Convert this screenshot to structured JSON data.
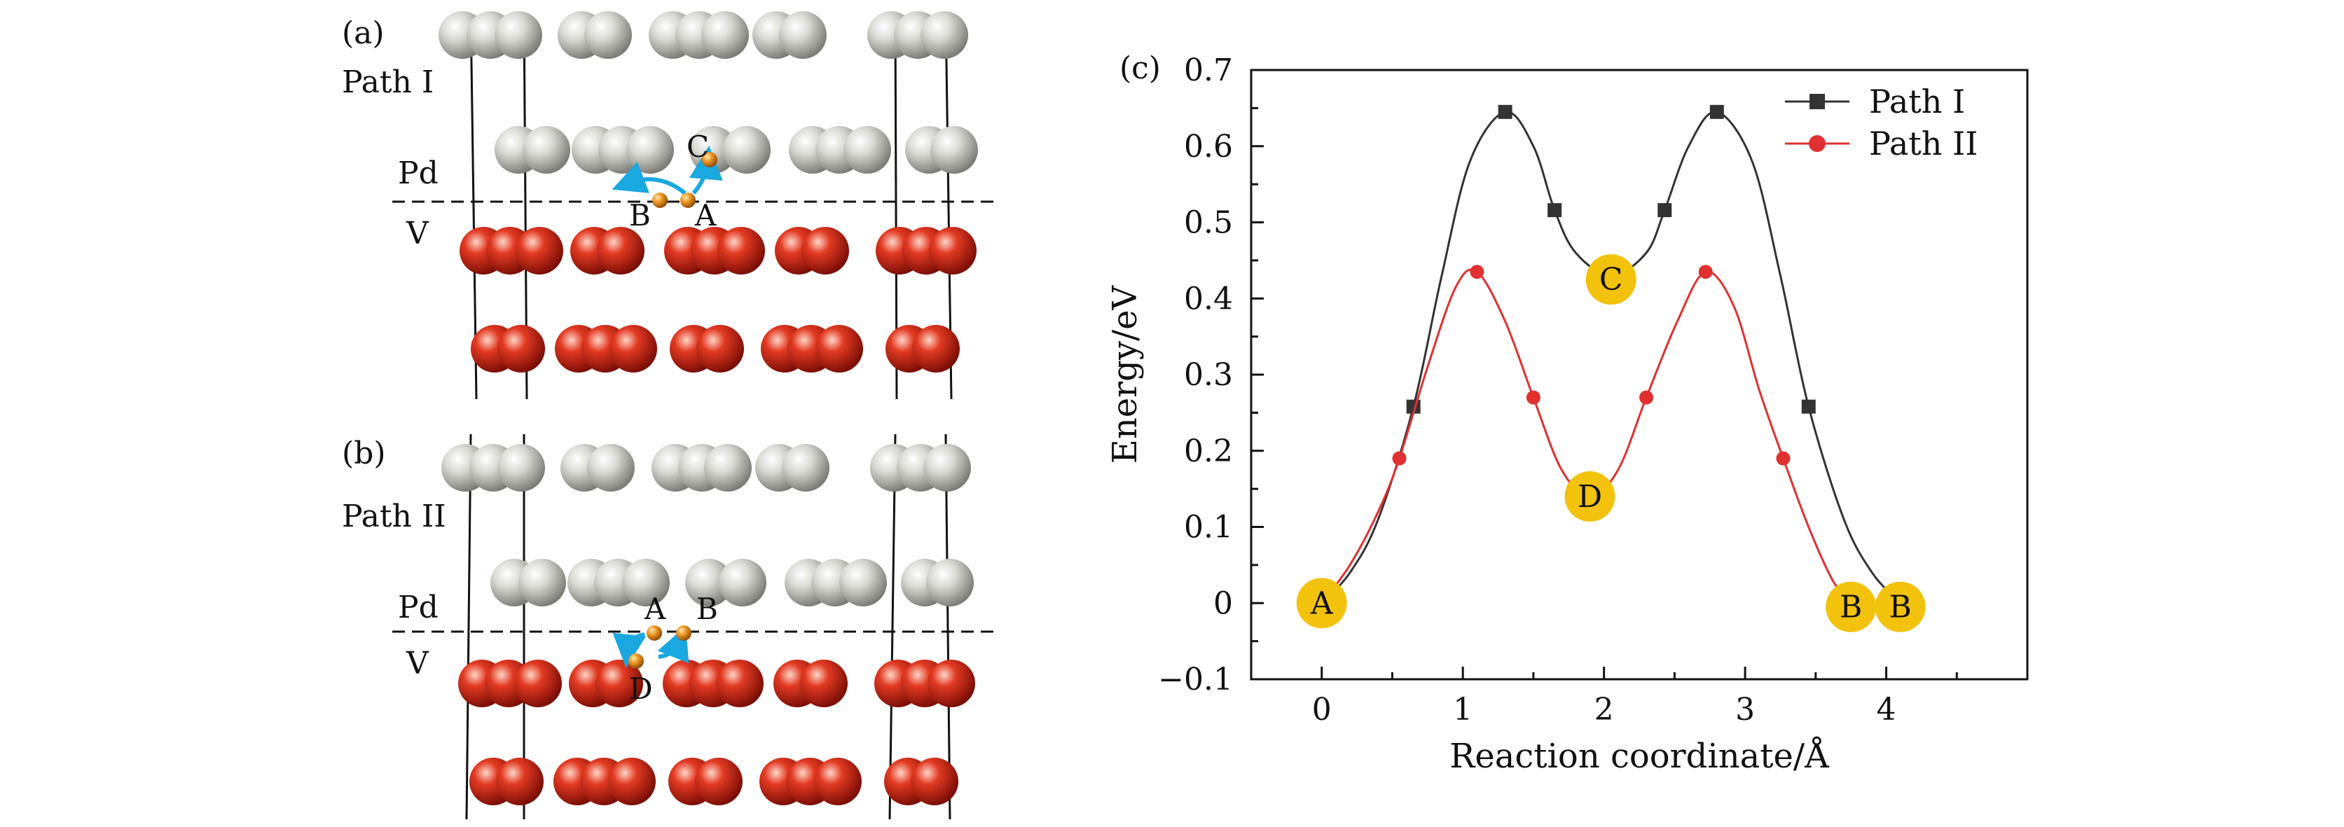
{
  "panels": {
    "a": {
      "label": "(a)",
      "path_label": "Path I",
      "upper_layer": "Pd",
      "lower_layer": "V",
      "sites": [
        "A",
        "B",
        "C"
      ]
    },
    "b": {
      "label": "(b)",
      "path_label": "Path II",
      "upper_layer": "Pd",
      "lower_layer": "V",
      "sites": [
        "A",
        "B",
        "D"
      ]
    },
    "c": {
      "label": "(c)"
    }
  },
  "colors": {
    "pd_atom": "#c8c8c2",
    "v_atom": "#d8301e",
    "h_atom": "#e08a1a",
    "arrow": "#1aa8e0",
    "path1": "#333333",
    "path2": "#e03030",
    "marker_fill": "#f2c20c"
  },
  "chart_data": {
    "type": "line",
    "xlabel": "Reaction coordinate/Å",
    "ylabel": "Energy/eV",
    "xlim": [
      -0.5,
      5.0
    ],
    "ylim": [
      -0.1,
      0.7
    ],
    "xticks": [
      0,
      1,
      2,
      3,
      4
    ],
    "yticks": [
      -0.1,
      0,
      0.1,
      0.2,
      0.3,
      0.4,
      0.5,
      0.6,
      0.7
    ],
    "ytick_labels": [
      "−0.1",
      "0",
      "0.1",
      "0.2",
      "0.3",
      "0.4",
      "0.5",
      "0.6",
      "0.7"
    ],
    "legend_position": "top-right",
    "series": [
      {
        "name": "Path I",
        "marker": "square",
        "points": [
          [
            0,
            0
          ],
          [
            0.65,
            0.258
          ],
          [
            1.3,
            0.645
          ],
          [
            1.65,
            0.516
          ],
          [
            2.05,
            0.43
          ],
          [
            2.43,
            0.516
          ],
          [
            2.8,
            0.645
          ],
          [
            3.45,
            0.258
          ],
          [
            4.1,
            0
          ]
        ],
        "curve": [
          [
            0,
            0
          ],
          [
            0.2,
            0.04
          ],
          [
            0.4,
            0.11
          ],
          [
            0.65,
            0.258
          ],
          [
            0.85,
            0.43
          ],
          [
            1.05,
            0.58
          ],
          [
            1.3,
            0.645
          ],
          [
            1.5,
            0.6
          ],
          [
            1.65,
            0.516
          ],
          [
            1.8,
            0.46
          ],
          [
            2.05,
            0.43
          ],
          [
            2.3,
            0.46
          ],
          [
            2.43,
            0.516
          ],
          [
            2.6,
            0.6
          ],
          [
            2.8,
            0.645
          ],
          [
            3.05,
            0.58
          ],
          [
            3.25,
            0.43
          ],
          [
            3.45,
            0.258
          ],
          [
            3.7,
            0.11
          ],
          [
            3.9,
            0.04
          ],
          [
            4.1,
            0
          ]
        ]
      },
      {
        "name": "Path II",
        "marker": "circle",
        "points": [
          [
            0,
            0
          ],
          [
            0.55,
            0.19
          ],
          [
            1.1,
            0.435
          ],
          [
            1.5,
            0.27
          ],
          [
            1.9,
            0.14
          ],
          [
            2.3,
            0.27
          ],
          [
            2.72,
            0.435
          ],
          [
            3.27,
            0.19
          ],
          [
            3.75,
            0
          ]
        ],
        "curve": [
          [
            0,
            0
          ],
          [
            0.2,
            0.05
          ],
          [
            0.4,
            0.12
          ],
          [
            0.55,
            0.19
          ],
          [
            0.75,
            0.31
          ],
          [
            0.95,
            0.415
          ],
          [
            1.1,
            0.435
          ],
          [
            1.3,
            0.37
          ],
          [
            1.5,
            0.27
          ],
          [
            1.7,
            0.175
          ],
          [
            1.9,
            0.14
          ],
          [
            2.1,
            0.175
          ],
          [
            2.3,
            0.27
          ],
          [
            2.52,
            0.37
          ],
          [
            2.72,
            0.435
          ],
          [
            2.92,
            0.39
          ],
          [
            3.1,
            0.28
          ],
          [
            3.27,
            0.19
          ],
          [
            3.45,
            0.1
          ],
          [
            3.62,
            0.03
          ],
          [
            3.75,
            0
          ]
        ]
      }
    ],
    "annotations": [
      {
        "text": "A",
        "x": 0,
        "y": 0
      },
      {
        "text": "C",
        "x": 2.05,
        "y": 0.425
      },
      {
        "text": "D",
        "x": 1.9,
        "y": 0.14
      },
      {
        "text": "B",
        "x": 3.75,
        "y": -0.005
      },
      {
        "text": "B",
        "x": 4.1,
        "y": -0.005
      }
    ]
  }
}
